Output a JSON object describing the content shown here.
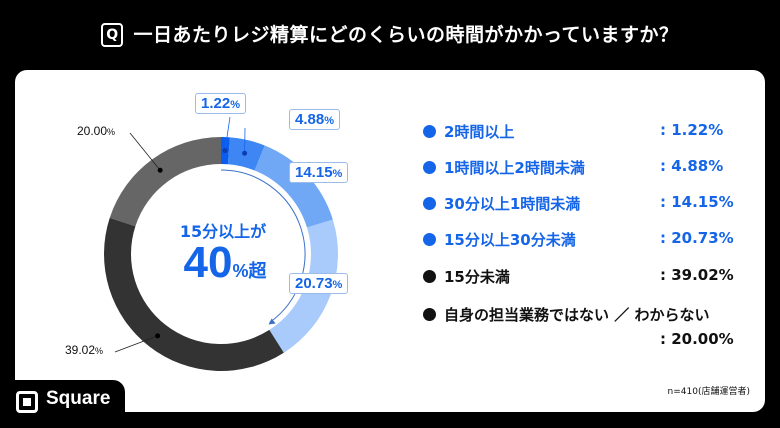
{
  "header": {
    "q_icon": "Q",
    "title": "一日あたりレジ精算にどのくらいの時間がかかっていますか？"
  },
  "chart_data": {
    "type": "pie",
    "variant": "donut",
    "categories": [
      "2時間以上",
      "1時間以上2時間未満",
      "30分以上1時間未満",
      "15分以上30分未満",
      "15分未満",
      "自身の担当業務ではない ／ わからない"
    ],
    "values": [
      1.22,
      4.88,
      14.15,
      20.73,
      39.02,
      20.0
    ],
    "colors": [
      "#0b5cf0",
      "#3d86f3",
      "#70a8f6",
      "#a8cbfb",
      "#333333",
      "#666666"
    ],
    "data_labels": [
      "1.22",
      "4.88",
      "14.15",
      "20.73",
      "39.02",
      "20.00"
    ],
    "unit": "%",
    "center_text": {
      "line1": "15分以上が",
      "big": "40",
      "suffix": "%超"
    },
    "legend_position": "right"
  },
  "legend": [
    {
      "label": "2時間以上",
      "value": ": 1.22%",
      "color": "#1565e8"
    },
    {
      "label": "1時間以上2時間未満",
      "value": ": 4.88%",
      "color": "#1565e8"
    },
    {
      "label": "30分以上1時間未満",
      "value": ": 14.15%",
      "color": "#1565e8"
    },
    {
      "label": "15分以上30分未満",
      "value": ": 20.73%",
      "color": "#1565e8"
    },
    {
      "label": "15分未満",
      "value": ": 39.02%",
      "color": "#111111"
    },
    {
      "label": "自身の担当業務ではない ／ わからない",
      "value": ": 20.00%",
      "color": "#111111"
    }
  ],
  "note": "n=410(店舗運営者)",
  "brand": {
    "name": "Square"
  }
}
